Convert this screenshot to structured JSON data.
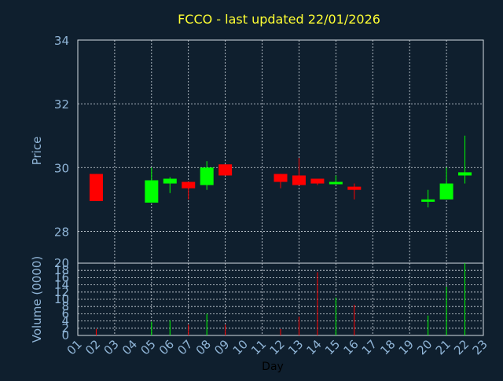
{
  "chart_data": {
    "type": "candlestick",
    "title": "FCCO - last updated 22/01/2026",
    "price_panel": {
      "ylabel": "Price",
      "ylim": [
        27,
        34
      ],
      "yticks": [
        28,
        30,
        32,
        34
      ]
    },
    "volume_panel": {
      "ylabel": "Volume (0000)",
      "ylim": [
        0,
        20
      ],
      "yticks": [
        0,
        2,
        4,
        6,
        8,
        10,
        12,
        14,
        16,
        18,
        20
      ]
    },
    "xlabel": "Day",
    "x_ticks": [
      "01",
      "02",
      "03",
      "04",
      "05",
      "06",
      "07",
      "08",
      "09",
      "10",
      "11",
      "12",
      "13",
      "14",
      "15",
      "16",
      "17",
      "18",
      "19",
      "20",
      "21",
      "22",
      "23"
    ],
    "up_color": "#00ff00",
    "down_color": "#ff0000",
    "candles": [
      {
        "day": 2,
        "open": 29.8,
        "high": 29.8,
        "low": 28.95,
        "close": 28.95,
        "volume": 1.8
      },
      {
        "day": 5,
        "open": 28.9,
        "high": 30.0,
        "low": 28.9,
        "close": 29.6,
        "volume": 3.8
      },
      {
        "day": 6,
        "open": 29.5,
        "high": 29.7,
        "low": 29.2,
        "close": 29.65,
        "volume": 4.2
      },
      {
        "day": 7,
        "open": 29.55,
        "high": 29.55,
        "low": 29.0,
        "close": 29.35,
        "volume": 3.0
      },
      {
        "day": 8,
        "open": 29.45,
        "high": 30.2,
        "low": 29.3,
        "close": 30.0,
        "volume": 6.0
      },
      {
        "day": 9,
        "open": 30.1,
        "high": 30.1,
        "low": 29.75,
        "close": 29.75,
        "volume": 3.0
      },
      {
        "day": 12,
        "open": 29.8,
        "high": 29.8,
        "low": 29.35,
        "close": 29.55,
        "volume": 1.8
      },
      {
        "day": 13,
        "open": 29.75,
        "high": 30.3,
        "low": 29.45,
        "close": 29.45,
        "volume": 5.2
      },
      {
        "day": 14,
        "open": 29.65,
        "high": 29.65,
        "low": 29.45,
        "close": 29.5,
        "volume": 17.5
      },
      {
        "day": 15,
        "open": 29.5,
        "high": 29.75,
        "low": 29.5,
        "close": 29.55,
        "volume": 10.5
      },
      {
        "day": 16,
        "open": 29.4,
        "high": 29.5,
        "low": 29.0,
        "close": 29.3,
        "volume": 8.5
      },
      {
        "day": 20,
        "open": 28.95,
        "high": 29.3,
        "low": 28.75,
        "close": 29.0,
        "volume": 5.5
      },
      {
        "day": 21,
        "open": 29.0,
        "high": 30.0,
        "low": 29.0,
        "close": 29.5,
        "volume": 13.5
      },
      {
        "day": 22,
        "open": 29.75,
        "high": 31.0,
        "low": 29.5,
        "close": 29.85,
        "volume": 20.0
      }
    ]
  }
}
